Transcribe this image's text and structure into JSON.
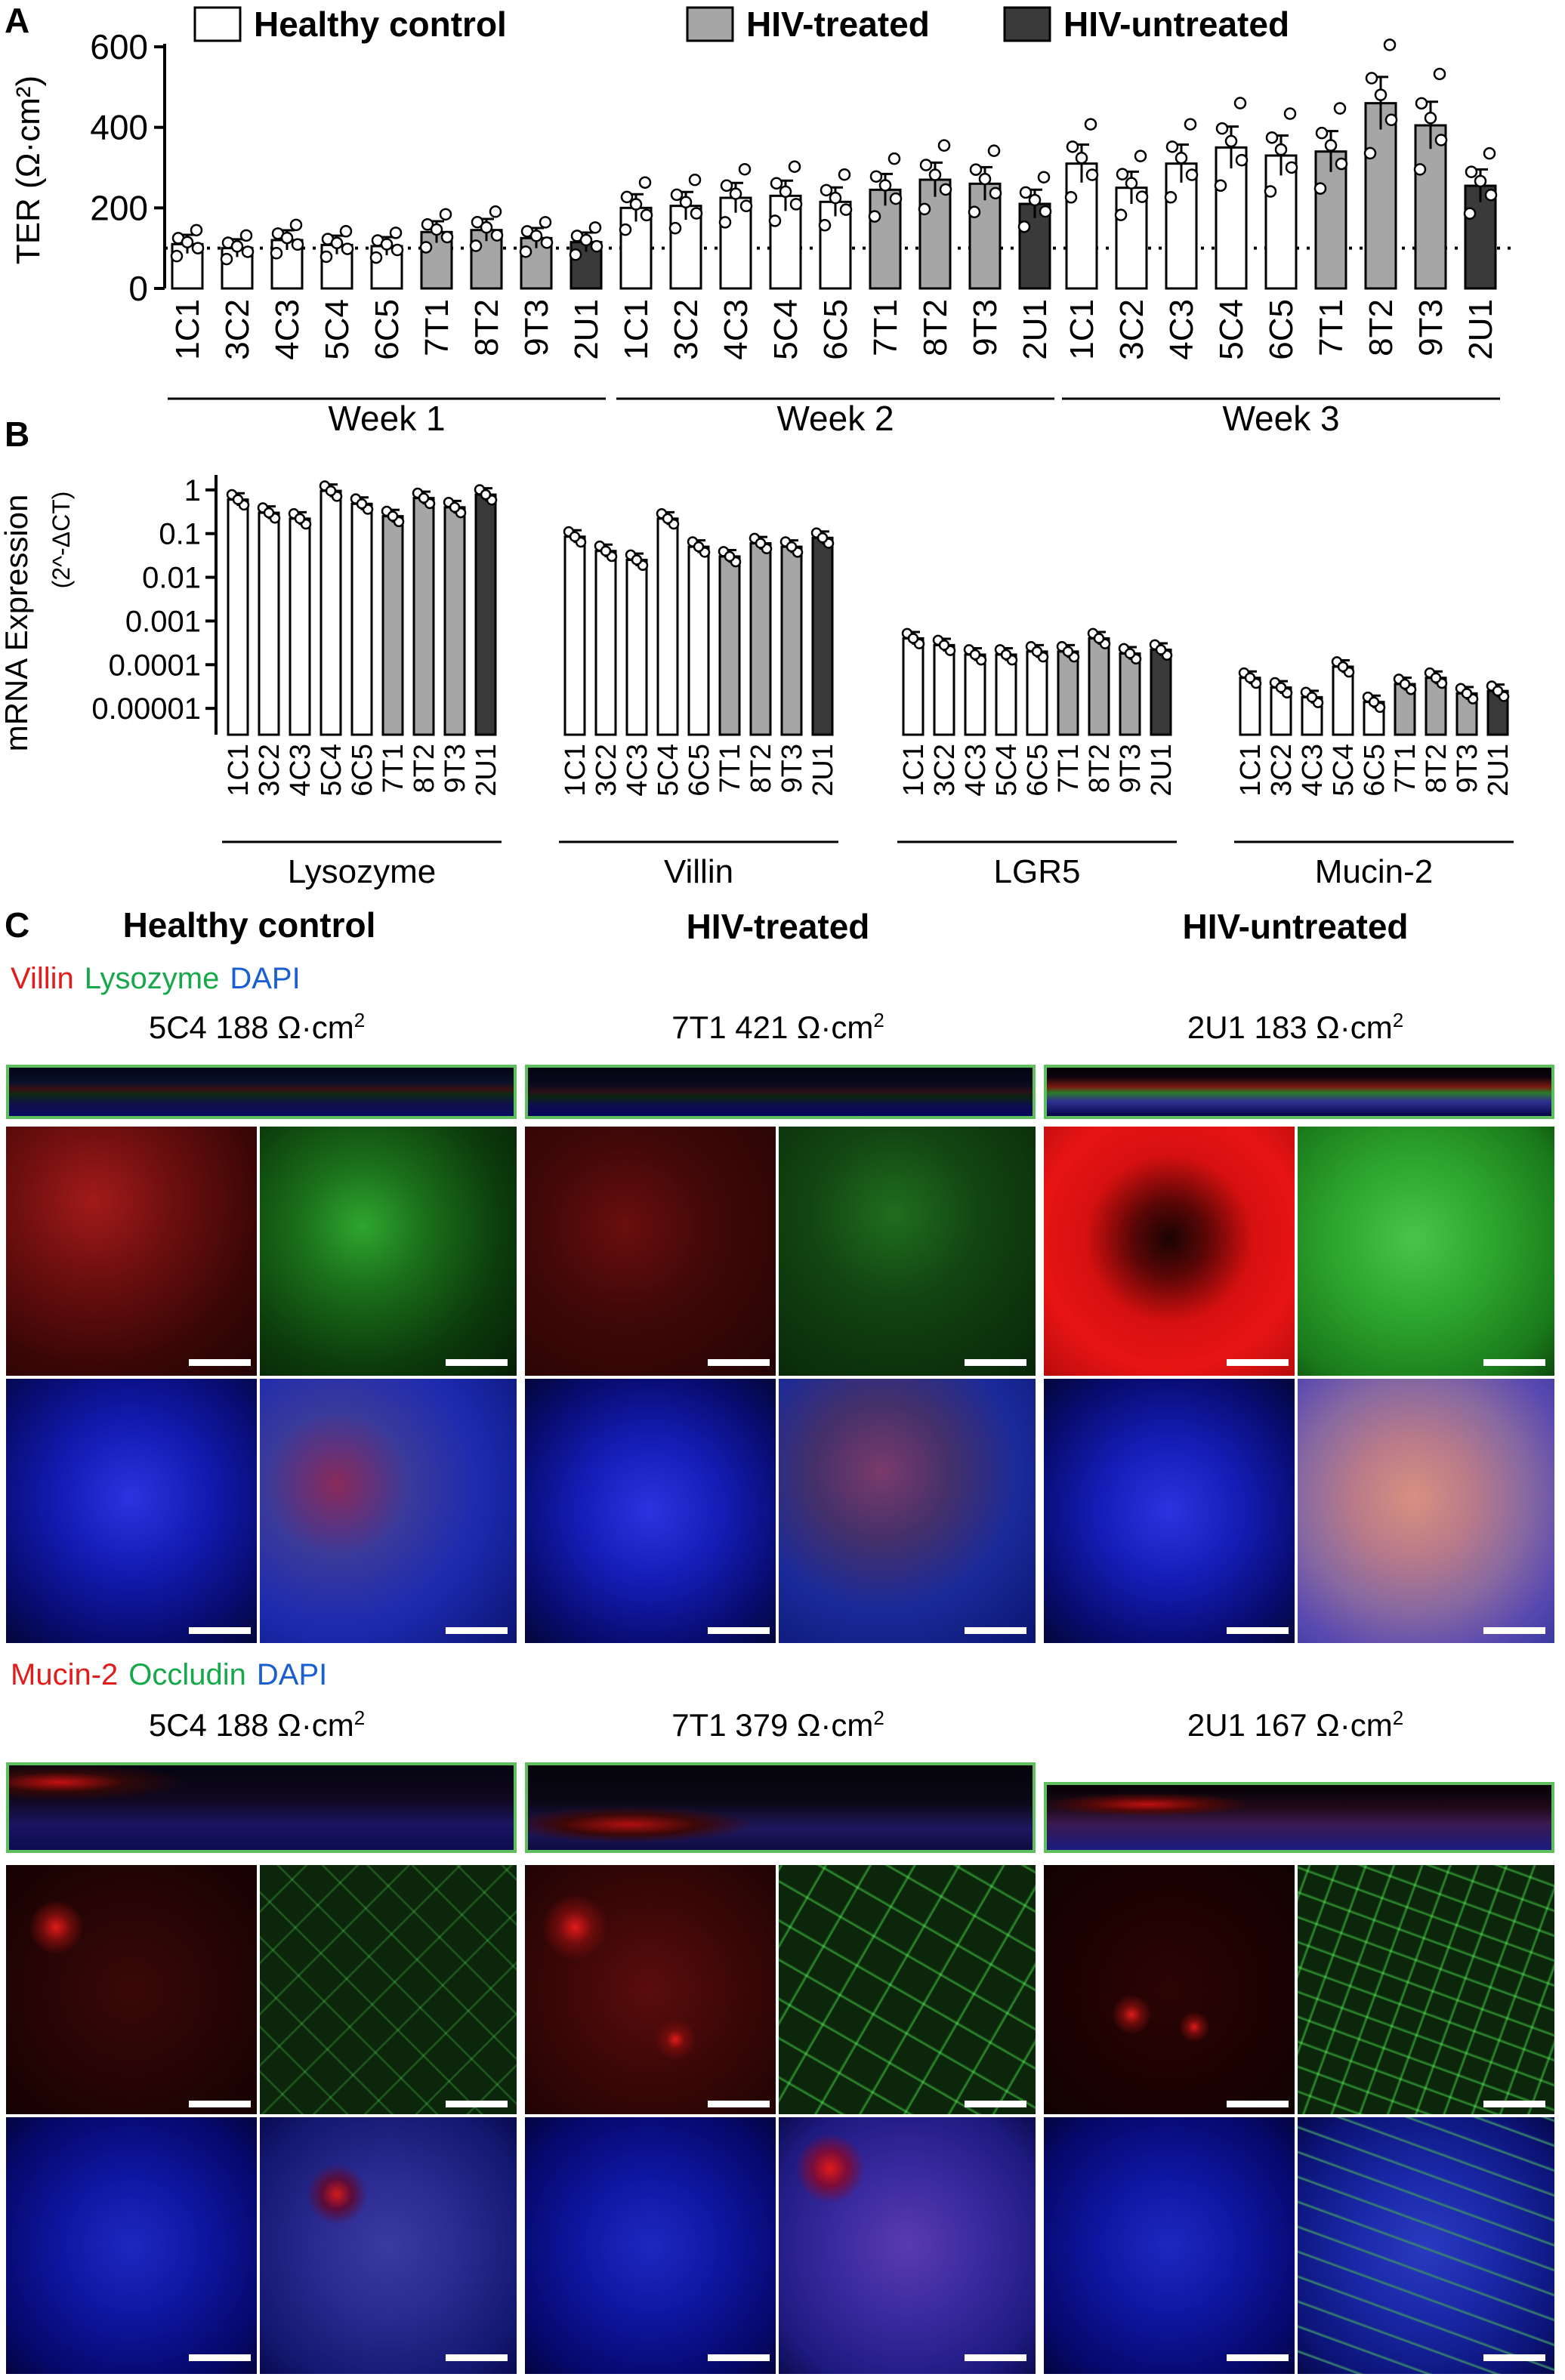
{
  "panels": {
    "A": "A",
    "B": "B",
    "C": "C"
  },
  "legend": [
    {
      "label": "Healthy control",
      "color": "#ffffff"
    },
    {
      "label": "HIV-treated",
      "color": "#a6a6a6"
    },
    {
      "label": "HIV-untreated",
      "color": "#3a3a3a"
    }
  ],
  "chart_data": [
    {
      "type": "bar",
      "ylabel": "TER (Ω·cm²)",
      "ylim": [
        0,
        600
      ],
      "yticks": [
        0,
        200,
        400,
        600
      ],
      "reference_line": 100,
      "categories": [
        "1C1",
        "3C2",
        "4C3",
        "5C4",
        "6C5",
        "7T1",
        "8T2",
        "9T3",
        "2U1"
      ],
      "category_groups": {
        "1C1": "Healthy control",
        "3C2": "Healthy control",
        "4C3": "Healthy control",
        "5C4": "Healthy control",
        "6C5": "Healthy control",
        "7T1": "HIV-treated",
        "8T2": "HIV-treated",
        "9T3": "HIV-treated",
        "2U1": "HIV-untreated"
      },
      "groups": [
        {
          "name": "Week 1",
          "values": [
            110,
            100,
            120,
            108,
            105,
            140,
            145,
            125,
            115
          ]
        },
        {
          "name": "Week 2",
          "values": [
            200,
            205,
            225,
            230,
            215,
            245,
            270,
            260,
            210
          ]
        },
        {
          "name": "Week 3",
          "values": [
            310,
            250,
            310,
            350,
            330,
            340,
            460,
            405,
            255
          ]
        }
      ]
    },
    {
      "type": "bar",
      "ylabel": "mRNA Expression",
      "ylabel2": "(2^-ΔCT)",
      "yscale": "log",
      "ylim": [
        2.5e-06,
        1.6
      ],
      "yticks": [
        1,
        0.1,
        0.01,
        0.001,
        0.0001,
        1e-05
      ],
      "ytick_labels": [
        "1",
        "0.1",
        "0.01",
        "0.001",
        "0.0001",
        "0.00001"
      ],
      "categories": [
        "1C1",
        "3C2",
        "4C3",
        "5C4",
        "6C5",
        "7T1",
        "8T2",
        "9T3",
        "2U1"
      ],
      "groups": [
        {
          "name": "Lysozyme",
          "values": [
            0.6,
            0.3,
            0.22,
            0.95,
            0.48,
            0.25,
            0.65,
            0.4,
            0.78
          ]
        },
        {
          "name": "Villin",
          "values": [
            0.085,
            0.04,
            0.025,
            0.22,
            0.05,
            0.03,
            0.06,
            0.05,
            0.08
          ]
        },
        {
          "name": "LGR5",
          "values": [
            0.0004,
            0.00028,
            0.00017,
            0.00017,
            0.0002,
            0.0002,
            0.0004,
            0.00018,
            0.00022
          ]
        },
        {
          "name": "Mucin-2",
          "values": [
            5e-05,
            3e-05,
            1.8e-05,
            9e-05,
            1.4e-05,
            3.6e-05,
            5e-05,
            2.2e-05,
            2.5e-05
          ]
        }
      ]
    }
  ],
  "panelC": {
    "group_titles": [
      "Healthy control",
      "HIV-treated",
      "HIV-untreated"
    ],
    "set1": {
      "stains": [
        {
          "text": "Villin",
          "color": "#e21b1b"
        },
        {
          "text": "Lysozyme",
          "color": "#16a84a"
        },
        {
          "text": "DAPI",
          "color": "#1a5fd1"
        }
      ],
      "ter_labels": [
        "5C4 188 Ω·cm",
        "7T1 421 Ω·cm",
        "2U1 183 Ω·cm"
      ],
      "sup": "2"
    },
    "set2": {
      "stains": [
        {
          "text": "Mucin-2",
          "color": "#e21b1b"
        },
        {
          "text": "Occludin",
          "color": "#16a84a"
        },
        {
          "text": "DAPI",
          "color": "#1a5fd1"
        }
      ],
      "ter_labels": [
        "5C4 188 Ω·cm",
        "7T1 379 Ω·cm",
        "2U1 167 Ω·cm"
      ],
      "sup": "2"
    }
  }
}
